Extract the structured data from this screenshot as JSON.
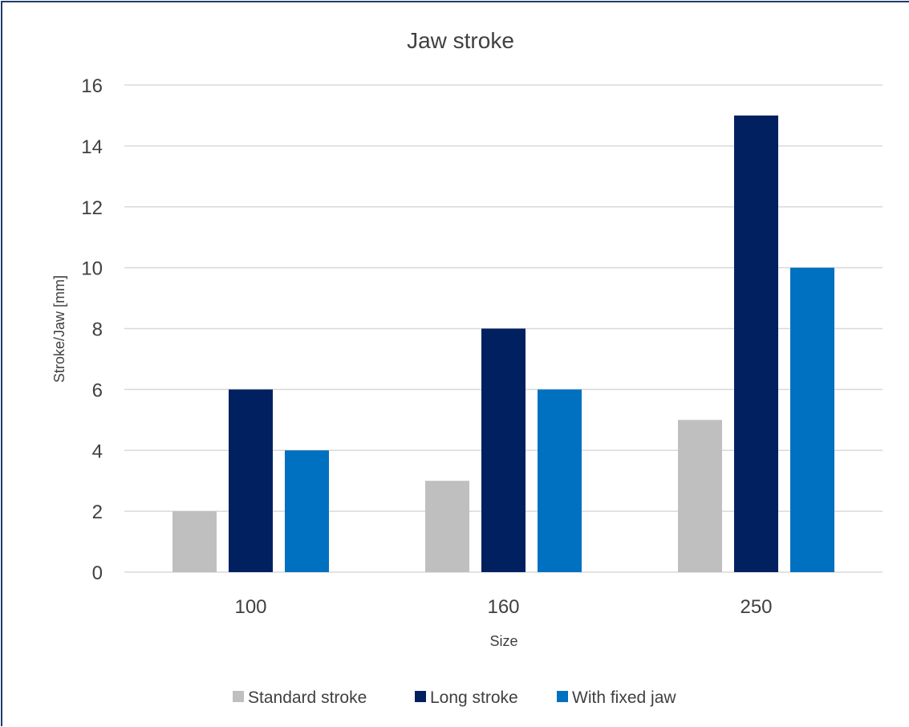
{
  "chart_data": {
    "type": "bar",
    "title": "Jaw stroke",
    "xlabel": "Size",
    "ylabel": "Stroke/Jaw [mm]",
    "categories": [
      "100",
      "160",
      "250"
    ],
    "series": [
      {
        "name": "Standard stroke",
        "values": [
          2,
          3,
          5
        ],
        "color": "#bfbfbf"
      },
      {
        "name": "Long stroke",
        "values": [
          6,
          8,
          15
        ],
        "color": "#002060"
      },
      {
        "name": "With fixed jaw",
        "values": [
          4,
          6,
          10
        ],
        "color": "#0070c0"
      }
    ],
    "ylim": [
      0,
      16
    ],
    "yticks": [
      0,
      2,
      4,
      6,
      8,
      10,
      12,
      14,
      16
    ],
    "grid": true,
    "legend_position": "bottom",
    "colors": {
      "gridline": "#d9d9d9",
      "text": "#404040",
      "frame": "#1f3d6b"
    }
  }
}
